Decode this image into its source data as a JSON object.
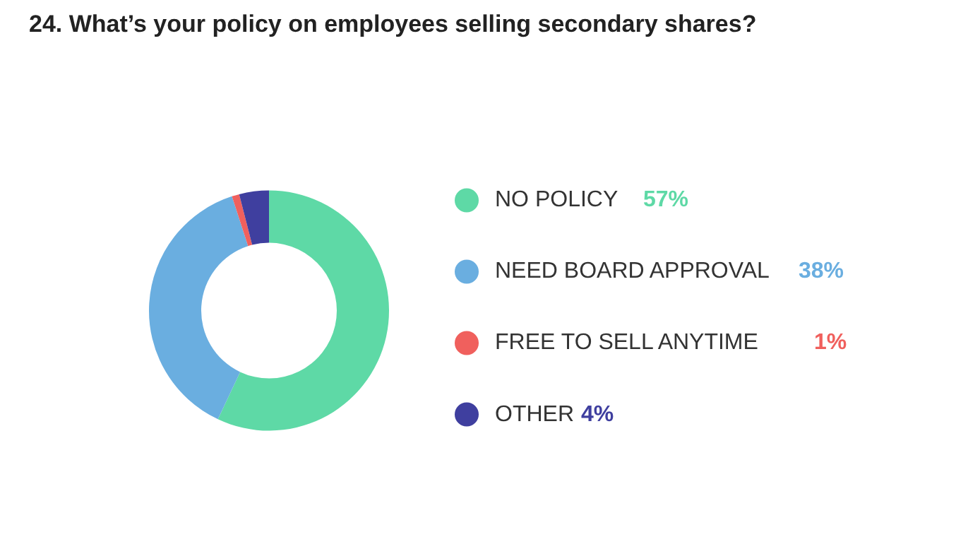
{
  "chart_data": {
    "type": "donut",
    "title": "24. What’s your policy on employees selling secondary shares?",
    "categories": [
      "NO POLICY",
      "NEED BOARD APPROVAL",
      "FREE TO SELL ANYTIME",
      "OTHER"
    ],
    "values": [
      57,
      38,
      1,
      4
    ],
    "colors": [
      "#5ed9a6",
      "#6aaee0",
      "#f0605d",
      "#3f3f9f"
    ],
    "value_labels": [
      "57%",
      "38%",
      "1%",
      "4%"
    ],
    "legend": "right"
  }
}
